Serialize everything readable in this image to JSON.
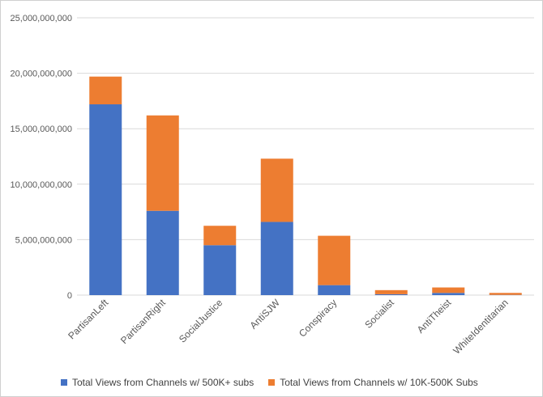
{
  "chart_data": {
    "type": "bar",
    "stacked": true,
    "categories": [
      "PartisanLeft",
      "PartisanRight",
      "SocialJustice",
      "AntiSJW",
      "Conspiracy",
      "Socialist",
      "AntiTheist",
      "WhiteIdentitarian"
    ],
    "series": [
      {
        "name": "Total Views from Channels w/ 500K+ subs",
        "color": "#4472C4",
        "values": [
          17200000000,
          7600000000,
          4500000000,
          6600000000,
          900000000,
          80000000,
          200000000,
          20000000
        ]
      },
      {
        "name": "Total Views from Channels w/ 10K-500K Subs",
        "color": "#ED7D31",
        "values": [
          2500000000,
          8600000000,
          1750000000,
          5700000000,
          4450000000,
          370000000,
          490000000,
          180000000
        ]
      }
    ],
    "ylim": [
      0,
      25000000000
    ],
    "yticks": [
      "0",
      "5,000,000,000",
      "10,000,000,000",
      "15,000,000,000",
      "20,000,000,000",
      "25,000,000,000"
    ],
    "ytick_values": [
      0,
      5000000000,
      10000000000,
      15000000000,
      20000000000,
      25000000000
    ],
    "grid": true,
    "legend_position": "bottom",
    "title": "",
    "xlabel": "",
    "ylabel": ""
  }
}
